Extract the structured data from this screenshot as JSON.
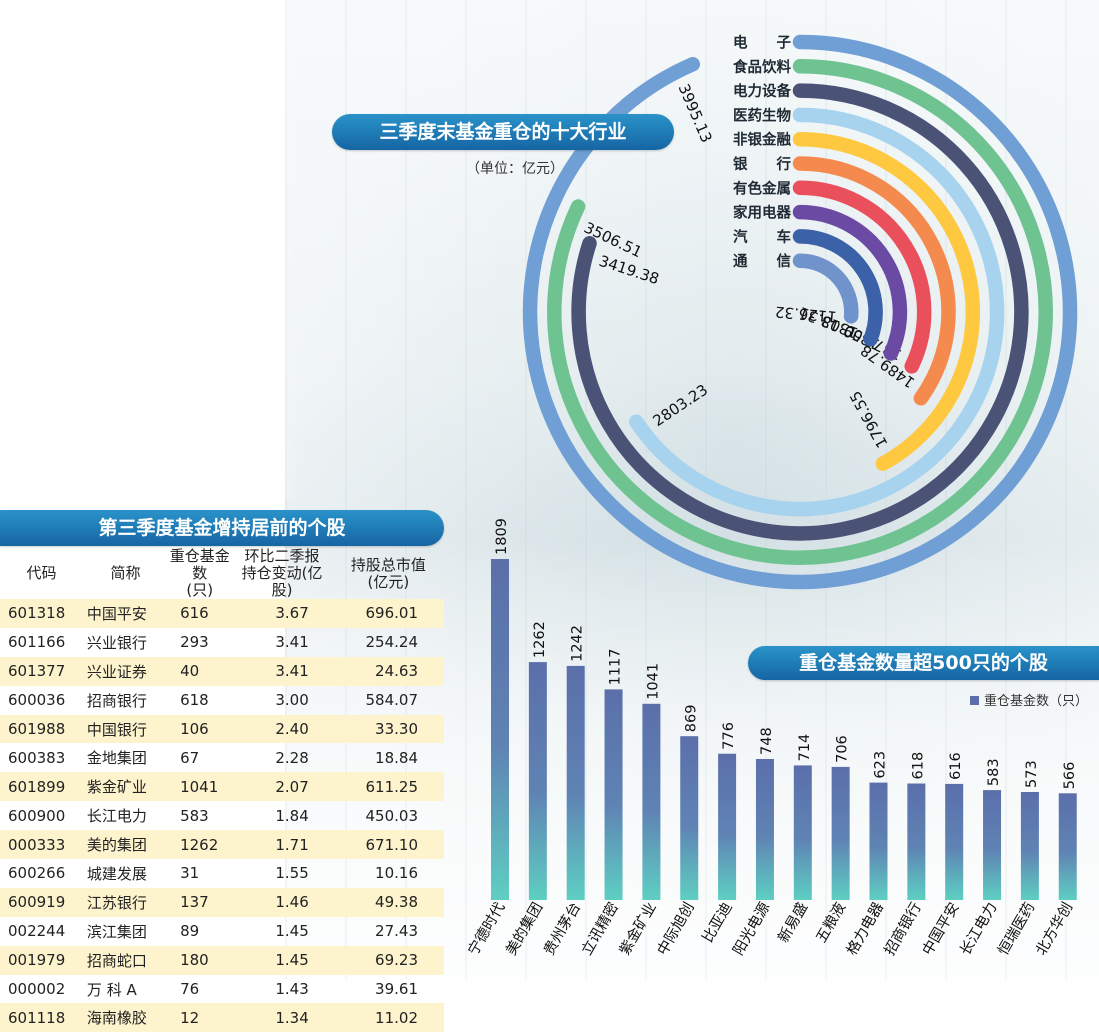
{
  "colors": {
    "pill": "#1e7dbb",
    "bar": "#5b6faa",
    "bar_bottom": "#5ecfc2",
    "table_stripe": "#fdf3cc"
  },
  "chart_data": [
    {
      "type": "radial-bar",
      "title": "三季度末基金重仓的十大行业",
      "unit": "（单位：亿元）",
      "categories": [
        "电　　子",
        "食品饮料",
        "电力设备",
        "医药生物",
        "非银金融",
        "银　　行",
        "有色金属",
        "家用电器",
        "汽　　车",
        "通　　信"
      ],
      "values": [
        3995.13,
        3506.51,
        3419.38,
        2803.23,
        1796.55,
        1489.78,
        1376.0,
        1359.03,
        1318.31,
        1126.32
      ],
      "value_labels": [
        "3995.13",
        "3506.51",
        "3419.38",
        "2803.23",
        "1796.55",
        "1489.78",
        "1376.00",
        "1359.03",
        "1318.31",
        "1126.32"
      ],
      "colors": [
        "#6f9fd4",
        "#6fc391",
        "#4a5276",
        "#a7d3ee",
        "#ffc841",
        "#f48a4e",
        "#e9505b",
        "#6a4aa2",
        "#3b61a8",
        "#7193cc"
      ]
    },
    {
      "type": "bar",
      "title": "重仓基金数量超500只的个股",
      "legend": "重仓基金数（只）",
      "categories": [
        "宁德时代",
        "美的集团",
        "贵州茅台",
        "立讯精密",
        "紫金矿业",
        "中际旭创",
        "比亚迪",
        "阳光电源",
        "新易盛",
        "五粮液",
        "格力电器",
        "招商银行",
        "中国平安",
        "长江电力",
        "恒瑞医药",
        "北方华创"
      ],
      "values": [
        1809,
        1262,
        1242,
        1117,
        1041,
        869,
        776,
        748,
        714,
        706,
        623,
        618,
        616,
        583,
        573,
        566
      ]
    }
  ],
  "stock_table": {
    "title": "第三季度基金增持居前的个股",
    "headers": {
      "code": "代码",
      "name": "简称",
      "funds_1": "重仓基金数",
      "funds_2": "(只)",
      "change_1": "环比二季报",
      "change_2": "持仓变动(亿股)",
      "value_1": "持股总市值",
      "value_2": "(亿元)"
    },
    "rows": [
      {
        "code": "601318",
        "name": "中国平安",
        "funds": "616",
        "change": "3.67",
        "value": "696.01"
      },
      {
        "code": "601166",
        "name": "兴业银行",
        "funds": "293",
        "change": "3.41",
        "value": "254.24"
      },
      {
        "code": "601377",
        "name": "兴业证券",
        "funds": "40",
        "change": "3.41",
        "value": "24.63"
      },
      {
        "code": "600036",
        "name": "招商银行",
        "funds": "618",
        "change": "3.00",
        "value": "584.07"
      },
      {
        "code": "601988",
        "name": "中国银行",
        "funds": "106",
        "change": "2.40",
        "value": "33.30"
      },
      {
        "code": "600383",
        "name": "金地集团",
        "funds": "67",
        "change": "2.28",
        "value": "18.84"
      },
      {
        "code": "601899",
        "name": "紫金矿业",
        "funds": "1041",
        "change": "2.07",
        "value": "611.25"
      },
      {
        "code": "600900",
        "name": "长江电力",
        "funds": "583",
        "change": "1.84",
        "value": "450.03"
      },
      {
        "code": "000333",
        "name": "美的集团",
        "funds": "1262",
        "change": "1.71",
        "value": "671.10"
      },
      {
        "code": "600266",
        "name": "城建发展",
        "funds": "31",
        "change": "1.55",
        "value": "10.16"
      },
      {
        "code": "600919",
        "name": "江苏银行",
        "funds": "137",
        "change": "1.46",
        "value": "49.38"
      },
      {
        "code": "002244",
        "name": "滨江集团",
        "funds": "89",
        "change": "1.45",
        "value": "27.43"
      },
      {
        "code": "001979",
        "name": "招商蛇口",
        "funds": "180",
        "change": "1.45",
        "value": "69.23"
      },
      {
        "code": "000002",
        "name": "万 科 A",
        "funds": "76",
        "change": "1.43",
        "value": "39.61"
      },
      {
        "code": "601118",
        "name": "海南橡胶",
        "funds": "12",
        "change": "1.34",
        "value": "11.02"
      }
    ]
  }
}
